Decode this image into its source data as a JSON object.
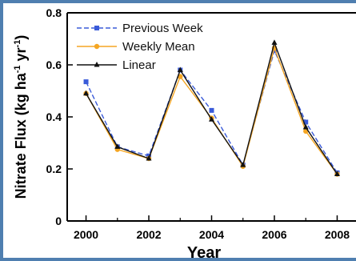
{
  "chart_data": {
    "type": "line",
    "title": "",
    "xlabel": "Year",
    "ylabel_main": "Nitrate Flux (kg ha",
    "ylabel_exp1": "-1",
    "ylabel_mid": " yr",
    "ylabel_exp2": "-1",
    "ylabel_end": ")",
    "xlim": [
      1999.4,
      2008.6
    ],
    "ylim": [
      0,
      0.8
    ],
    "x_ticks": [
      2000,
      2002,
      2004,
      2006,
      2008
    ],
    "x_tick_labels": [
      "2000",
      "2002",
      "2004",
      "2006",
      "2008"
    ],
    "y_ticks": [
      0,
      0.2,
      0.4,
      0.6,
      0.8
    ],
    "y_tick_labels": [
      "0",
      "0.2",
      "0.4",
      "0.6",
      "0.8"
    ],
    "grid": false,
    "legend_position": "top-left",
    "x": [
      2000,
      2001,
      2002,
      2003,
      2004,
      2005,
      2006,
      2007,
      2008
    ],
    "series": [
      {
        "name": "Previous Week",
        "values": [
          0.535,
          0.285,
          0.25,
          0.58,
          0.425,
          0.215,
          0.655,
          0.38,
          0.185
        ],
        "color": "#3a5bd9",
        "marker": "square",
        "dash": "dashed"
      },
      {
        "name": "Weekly Mean",
        "values": [
          0.49,
          0.275,
          0.24,
          0.555,
          0.395,
          0.21,
          0.665,
          0.345,
          0.18
        ],
        "color": "#f5a623",
        "marker": "circle",
        "dash": "solid"
      },
      {
        "name": "Linear",
        "values": [
          0.49,
          0.285,
          0.24,
          0.58,
          0.39,
          0.215,
          0.685,
          0.36,
          0.18
        ],
        "color": "#111111",
        "marker": "triangle",
        "dash": "solid"
      }
    ]
  }
}
